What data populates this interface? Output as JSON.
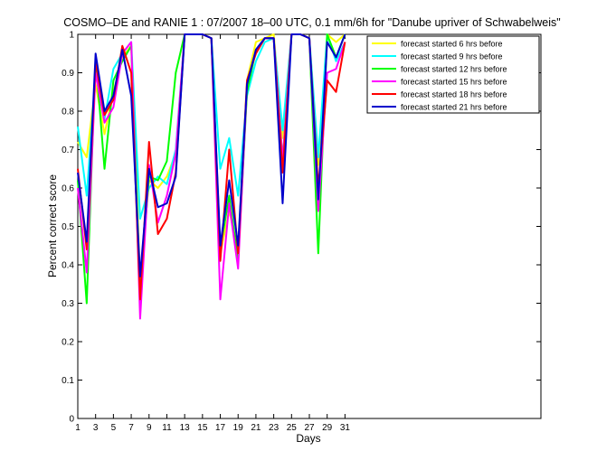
{
  "chart_data": {
    "type": "line",
    "title": "COSMO–DE and RANIE 1 : 07/2007 18–00 UTC, 0.1 mm/6h for \"Danube upriver of Schwabelweis\"",
    "xlabel": "Days",
    "ylabel": "Percent correct score",
    "xlim": [
      1,
      53
    ],
    "ylim": [
      0,
      1
    ],
    "xticks": [
      1,
      3,
      5,
      7,
      9,
      11,
      13,
      15,
      17,
      19,
      21,
      23,
      25,
      27,
      29,
      31
    ],
    "yticks": [
      0,
      0.1,
      0.2,
      0.3,
      0.4,
      0.5,
      0.6,
      0.7,
      0.8,
      0.9,
      1
    ],
    "ytick_labels": [
      "0",
      "0.1",
      "0.2",
      "0.3",
      "0.4",
      "0.5",
      "0.6",
      "0.7",
      "0.8",
      "0.9",
      "1"
    ],
    "grid": false,
    "legend_position": "top-right",
    "x": [
      1,
      2,
      3,
      4,
      5,
      6,
      7,
      8,
      9,
      10,
      11,
      12,
      13,
      14,
      15,
      16,
      17,
      18,
      19,
      20,
      21,
      22,
      23,
      24,
      25,
      26,
      27,
      28,
      29,
      30,
      31
    ],
    "series": [
      {
        "name": "forecast started 6 hrs before",
        "color": "#ffff00",
        "values": [
          0.72,
          0.68,
          0.87,
          0.74,
          0.85,
          0.94,
          0.97,
          0.36,
          0.62,
          0.6,
          0.63,
          0.69,
          1.0,
          1.0,
          1.0,
          0.99,
          0.43,
          0.54,
          0.44,
          0.88,
          0.98,
          0.99,
          1.0,
          0.73,
          1.0,
          1.0,
          0.99,
          0.66,
          1.0,
          0.98,
          1.0
        ]
      },
      {
        "name": "forecast started 9 hrs before",
        "color": "#00ffff",
        "values": [
          0.76,
          0.58,
          0.9,
          0.78,
          0.91,
          0.95,
          0.98,
          0.52,
          0.6,
          0.63,
          0.61,
          0.7,
          1.0,
          1.0,
          1.0,
          0.99,
          0.65,
          0.73,
          0.58,
          0.84,
          0.93,
          0.98,
          0.99,
          0.75,
          1.0,
          1.0,
          0.99,
          0.68,
          1.0,
          0.93,
          0.98
        ]
      },
      {
        "name": "forecast started 12 hrs before",
        "color": "#00ff00",
        "values": [
          0.62,
          0.3,
          0.94,
          0.65,
          0.88,
          0.93,
          0.97,
          0.33,
          0.63,
          0.62,
          0.67,
          0.9,
          1.0,
          1.0,
          1.0,
          0.99,
          0.44,
          0.58,
          0.41,
          0.85,
          0.96,
          0.99,
          0.99,
          0.67,
          1.0,
          1.0,
          0.99,
          0.43,
          1.0,
          0.94,
          1.0
        ]
      },
      {
        "name": "forecast started 15 hrs before",
        "color": "#ff00ff",
        "values": [
          0.6,
          0.38,
          0.9,
          0.77,
          0.81,
          0.95,
          0.98,
          0.26,
          0.66,
          0.51,
          0.58,
          0.69,
          1.0,
          1.0,
          1.0,
          0.99,
          0.31,
          0.56,
          0.39,
          0.87,
          0.96,
          0.99,
          0.99,
          0.67,
          1.0,
          1.0,
          0.99,
          0.54,
          0.9,
          0.91,
          0.98
        ]
      },
      {
        "name": "forecast started 18 hrs before",
        "color": "#ff0000",
        "values": [
          0.65,
          0.44,
          0.93,
          0.79,
          0.83,
          0.97,
          0.9,
          0.31,
          0.72,
          0.48,
          0.52,
          0.64,
          1.0,
          1.0,
          1.0,
          0.99,
          0.41,
          0.7,
          0.43,
          0.88,
          0.95,
          0.99,
          0.99,
          0.64,
          1.0,
          1.0,
          0.99,
          0.6,
          0.88,
          0.85,
          0.98
        ]
      },
      {
        "name": "forecast started 21 hrs before",
        "color": "#0000cc",
        "values": [
          0.64,
          0.46,
          0.95,
          0.8,
          0.84,
          0.96,
          0.84,
          0.37,
          0.65,
          0.55,
          0.56,
          0.63,
          1.0,
          1.0,
          1.0,
          0.99,
          0.45,
          0.62,
          0.45,
          0.87,
          0.96,
          0.99,
          0.99,
          0.56,
          1.0,
          1.0,
          0.99,
          0.57,
          0.98,
          0.94,
          1.0
        ]
      }
    ]
  }
}
